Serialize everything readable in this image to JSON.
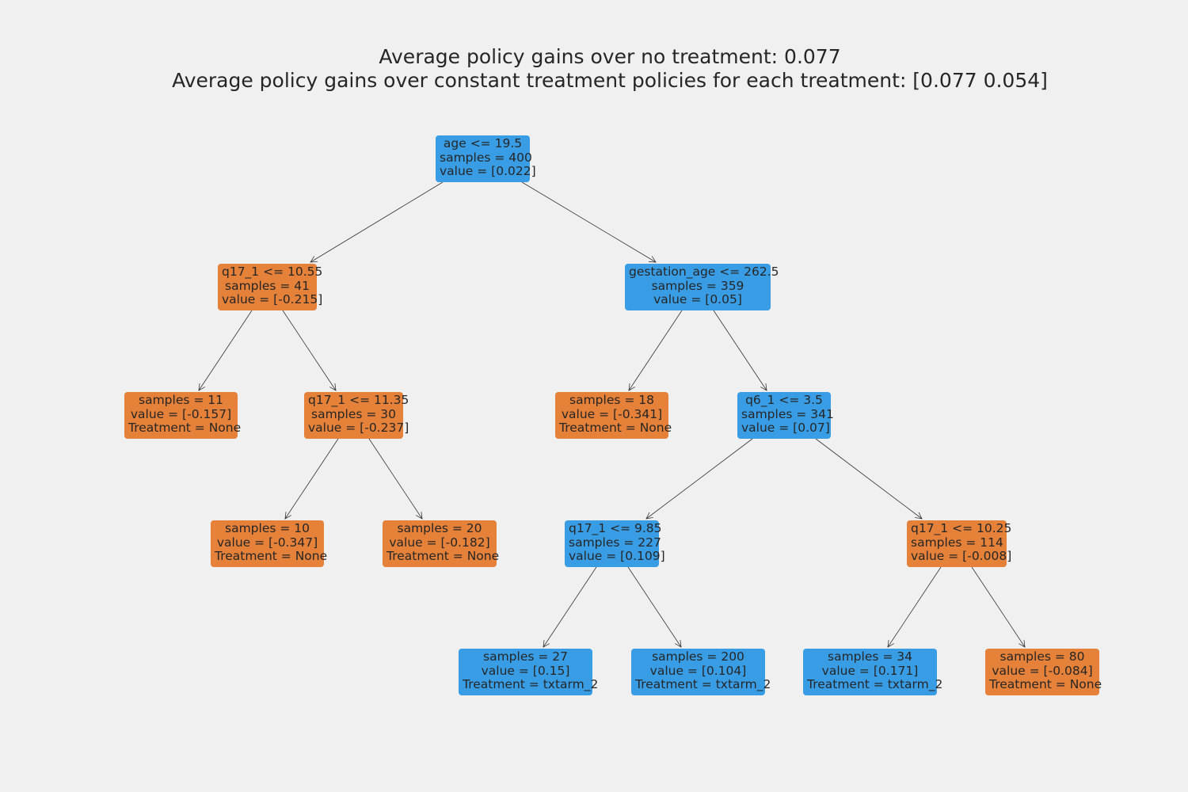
{
  "title": {
    "line1": "Average policy gains over no treatment: 0.077",
    "line2": "Average policy gains over constant treatment policies for each treatment: [0.077 0.054]"
  },
  "colors": {
    "background": "#f0f0f0",
    "treatment_txtarm_2": "#399de5",
    "treatment_none": "#e58139"
  },
  "tree": {
    "root": {
      "lines": [
        "age <= 19.5",
        "samples = 400",
        "value = [0.022]"
      ],
      "class": "blue"
    },
    "n_q17_1055": {
      "lines": [
        "q17_1 <= 10.55",
        "samples = 41",
        "value = [-0.215]"
      ],
      "class": "orange"
    },
    "n_gest": {
      "lines": [
        "gestation_age <= 262.5",
        "samples = 359",
        "value = [0.05]"
      ],
      "class": "blue"
    },
    "leaf_11": {
      "lines": [
        "samples = 11",
        "value = [-0.157]",
        "Treatment = None"
      ],
      "class": "orange"
    },
    "n_q17_1135": {
      "lines": [
        "q17_1 <= 11.35",
        "samples = 30",
        "value = [-0.237]"
      ],
      "class": "orange"
    },
    "leaf_18": {
      "lines": [
        "samples = 18",
        "value = [-0.341]",
        "Treatment = None"
      ],
      "class": "orange"
    },
    "n_q6": {
      "lines": [
        "q6_1 <= 3.5",
        "samples = 341",
        "value = [0.07]"
      ],
      "class": "blue"
    },
    "leaf_10": {
      "lines": [
        "samples = 10",
        "value = [-0.347]",
        "Treatment = None"
      ],
      "class": "orange"
    },
    "leaf_20": {
      "lines": [
        "samples = 20",
        "value = [-0.182]",
        "Treatment = None"
      ],
      "class": "orange"
    },
    "n_q17_985": {
      "lines": [
        "q17_1 <= 9.85",
        "samples = 227",
        "value = [0.109]"
      ],
      "class": "blue"
    },
    "n_q17_1025": {
      "lines": [
        "q17_1 <= 10.25",
        "samples = 114",
        "value = [-0.008]"
      ],
      "class": "orange"
    },
    "leaf_27": {
      "lines": [
        "samples = 27",
        "value = [0.15]",
        "Treatment = txtarm_2"
      ],
      "class": "blue"
    },
    "leaf_200": {
      "lines": [
        "samples = 200",
        "value = [0.104]",
        "Treatment = txtarm_2"
      ],
      "class": "blue"
    },
    "leaf_34": {
      "lines": [
        "samples = 34",
        "value = [0.171]",
        "Treatment = txtarm_2"
      ],
      "class": "blue"
    },
    "leaf_80": {
      "lines": [
        "samples = 80",
        "value = [-0.084]",
        "Treatment = None"
      ],
      "class": "orange"
    }
  }
}
